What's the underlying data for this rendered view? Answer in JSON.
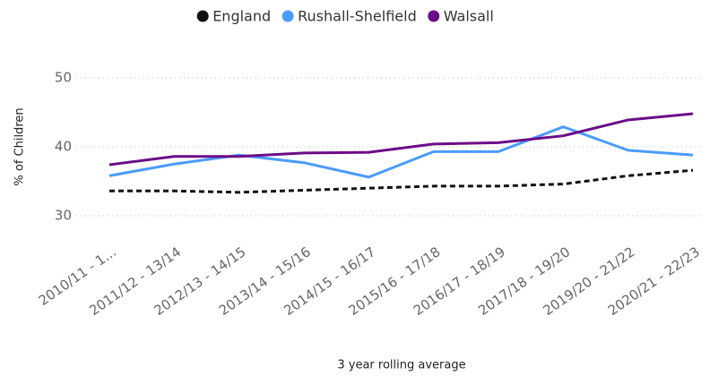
{
  "chart_data": {
    "type": "line",
    "y_axis_label": "% of Children",
    "x_axis_label": "3 year rolling average",
    "categories": [
      "2010/11 - 1...",
      "2011/12 - 13/14",
      "2012/13 - 14/15",
      "2013/14 - 15/16",
      "2014/15 - 16/17",
      "2015/16 - 17/18",
      "2016/17 - 18/19",
      "2017/18 - 19/20",
      "2019/20 - 21/22",
      "2020/21 - 22/23"
    ],
    "series": [
      {
        "name": "England",
        "color": "#111111",
        "dashed": true,
        "values": [
          33.6,
          33.6,
          33.4,
          33.7,
          34.0,
          34.3,
          34.3,
          34.6,
          35.8,
          36.6
        ]
      },
      {
        "name": "Rushall-Shelfield",
        "color": "#4a9bff",
        "dashed": false,
        "values": [
          35.8,
          37.5,
          38.8,
          37.7,
          35.6,
          39.3,
          39.3,
          42.9,
          39.5,
          38.8
        ]
      },
      {
        "name": "Walsall",
        "color": "#6b0d88",
        "dashed": false,
        "values": [
          37.4,
          38.6,
          38.6,
          39.1,
          39.2,
          40.4,
          40.6,
          41.6,
          43.9,
          44.8
        ]
      }
    ],
    "ylim": [
      28,
      52
    ],
    "yticks": [
      30,
      40,
      50
    ],
    "grid": true,
    "legend": "top"
  }
}
